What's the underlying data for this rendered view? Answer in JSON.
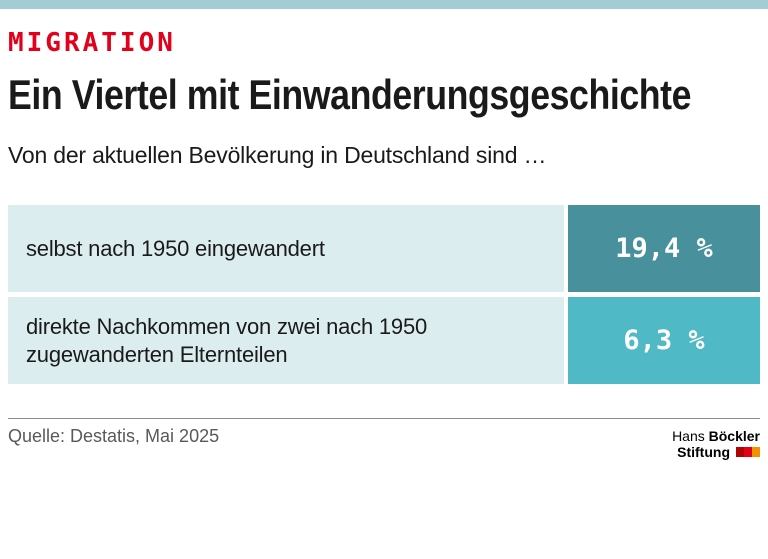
{
  "kicker": "MIGRATION",
  "title": "Ein Viertel mit Einwanderungsgeschichte",
  "subtitle": "Von der aktuellen Bevölkerung in Deutschland sind …",
  "chart_data": {
    "type": "bar",
    "orientation": "horizontal",
    "title": "Ein Viertel mit Einwanderungsgeschichte",
    "subtitle": "Von der aktuellen Bevölkerung in Deutschland sind …",
    "categories": [
      "selbst nach 1950 eingewandert",
      "direkte Nachkommen von zwei nach 1950 zugewanderten Elternteilen"
    ],
    "values": [
      19.4,
      6.3
    ],
    "unit": "%",
    "value_labels": [
      "19,4 %",
      "6,3 %"
    ],
    "bar_colors": [
      "#47909c",
      "#4fb9c6"
    ],
    "row_background": "#dcedf0",
    "legend_position": "none",
    "grid": false
  },
  "rows": [
    {
      "label": "selbst nach 1950 eingewandert",
      "value": "19,4 %",
      "color": "#47909c"
    },
    {
      "label": "direkte Nachkommen von zwei nach 1950 zugewanderten Elternteilen",
      "value": "6,3 %",
      "color": "#4fb9c6"
    }
  ],
  "footer": {
    "source": "Quelle: Destatis, Mai 2025",
    "logo": {
      "line1_light": "Hans",
      "line1_bold": "Böckler",
      "line2_bold": "Stiftung"
    }
  },
  "colors": {
    "accent_bar": "#a3ccd5",
    "kicker_red": "#e2001a",
    "row_bg": "#dcedf0",
    "bar_dark_teal": "#47909c",
    "bar_light_teal": "#4fb9c6",
    "logo_mark_red": "#e2001a",
    "logo_mark_orange": "#f39200"
  }
}
